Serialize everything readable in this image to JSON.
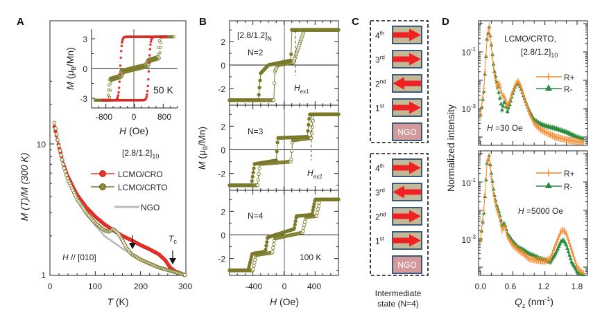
{
  "figure": {
    "panel_labels": [
      "A",
      "B",
      "C",
      "D"
    ]
  },
  "colors": {
    "cro": "#e8332a",
    "crto": "#7b7a2a",
    "ngo": "#b8b8b8",
    "rplus": "#f08a2c",
    "rminus": "#2a8a3e",
    "layer_fill": "#c3b998",
    "layer_border": "#3a5a7a",
    "arrow": "#ee2222",
    "ngo_fill": "#d29a9a"
  },
  "chart_data": [
    {
      "id": "A-main",
      "type": "line",
      "title": "",
      "xlabel": "T (K)",
      "ylabel": "M (T)/M (300 K)",
      "xlim": [
        0,
        300
      ],
      "ylim": [
        1,
        30
      ],
      "yscale": "log",
      "xticks": [
        "0",
        "100",
        "200",
        "300"
      ],
      "yticks": [
        "1",
        "10"
      ],
      "legend_title": "[2.8/1.2]10",
      "annotations": [
        "H // [010]",
        "Tc"
      ],
      "series": [
        {
          "name": "LCMO/CRO",
          "x": [
            10,
            20,
            30,
            40,
            60,
            80,
            100,
            120,
            140,
            160,
            180,
            200,
            220,
            240,
            255,
            265,
            275,
            290,
            300
          ],
          "y": [
            13.5,
            9.5,
            7.0,
            5.6,
            4.1,
            3.3,
            2.8,
            2.45,
            2.2,
            2.0,
            1.85,
            1.7,
            1.58,
            1.45,
            1.3,
            1.15,
            1.08,
            1.03,
            1.0
          ]
        },
        {
          "name": "LCMO/CRTO",
          "x": [
            10,
            20,
            30,
            40,
            60,
            80,
            100,
            120,
            130,
            140,
            150,
            160,
            170,
            180,
            200,
            220,
            240,
            260,
            280,
            300
          ],
          "y": [
            14.5,
            9.5,
            6.8,
            5.3,
            3.8,
            3.0,
            2.5,
            2.2,
            2.15,
            2.25,
            2.1,
            1.85,
            1.6,
            1.45,
            1.32,
            1.23,
            1.15,
            1.1,
            1.05,
            1.0
          ]
        },
        {
          "name": "NGO",
          "x": [
            10,
            40,
            80,
            120,
            160,
            180
          ],
          "y": [
            13,
            5.2,
            2.9,
            2.0,
            1.6,
            1.45
          ]
        }
      ],
      "arrows_at_T": [
        180,
        268
      ]
    },
    {
      "id": "A-inset",
      "type": "line",
      "xlabel": "H (Oe)",
      "ylabel": "M (μB/Mn)",
      "xlim": [
        -1200,
        1200
      ],
      "ylim": [
        -3.8,
        3.8
      ],
      "xticks": [
        "-800",
        "0",
        "800"
      ],
      "yticks": [
        "3",
        "0",
        "-3"
      ],
      "annotation": "50 K",
      "series": [
        {
          "name": "LCMO/CRO",
          "coercive_field": 400,
          "saturation": 3.2
        },
        {
          "name": "LCMO/CRTO",
          "steps": [
            [
              -1050,
              -3.2
            ],
            [
              -700,
              -0.8
            ],
            [
              -350,
              0
            ],
            [
              350,
              0.8
            ],
            [
              700,
              3.2
            ],
            [
              1050,
              3.2
            ]
          ]
        }
      ]
    },
    {
      "id": "B",
      "type": "line",
      "xlabel": "H (Oe)",
      "ylabel": "M (μB/Mn)",
      "xlim": [
        -700,
        700
      ],
      "ylim": [
        -3.4,
        3.4
      ],
      "xticks": [
        "-400",
        "0",
        "400"
      ],
      "yticks": [
        "2",
        "0",
        "-2"
      ],
      "annotations": [
        "[2.8/1.2]N",
        "Hex1",
        "Hex2",
        "100 K"
      ],
      "subplots": [
        {
          "label": "N=2",
          "steps_up": [
            [
              -700,
              -3
            ],
            [
              -330,
              -3
            ],
            [
              -300,
              -0.7
            ],
            [
              -200,
              0
            ],
            [
              90,
              0.4
            ],
            [
              100,
              3
            ],
            [
              700,
              3
            ]
          ],
          "steps_down": [
            [
              -700,
              -3
            ],
            [
              -130,
              -3
            ],
            [
              -120,
              -0.6
            ],
            [
              -80,
              0
            ],
            [
              120,
              0.2
            ],
            [
              200,
              1.8
            ],
            [
              260,
              3
            ],
            [
              700,
              3
            ]
          ],
          "Hex": 145
        },
        {
          "label": "N=3",
          "steps_up": [
            [
              -700,
              -3
            ],
            [
              -420,
              -3
            ],
            [
              -380,
              -1.2
            ],
            [
              -100,
              -0.9
            ],
            [
              -80,
              1
            ],
            [
              300,
              1.1
            ],
            [
              330,
              3
            ],
            [
              700,
              3
            ]
          ],
          "steps_down": [
            [
              -700,
              -3
            ],
            [
              -340,
              -3
            ],
            [
              -310,
              -1.2
            ],
            [
              90,
              -1
            ],
            [
              110,
              0.8
            ],
            [
              350,
              1
            ],
            [
              380,
              3
            ],
            [
              700,
              3
            ]
          ],
          "Hex": 350
        },
        {
          "label": "N=4",
          "steps_up": [
            [
              -700,
              -3
            ],
            [
              -460,
              -3
            ],
            [
              -410,
              -1.6
            ],
            [
              -240,
              -1.4
            ],
            [
              -210,
              -0.2
            ],
            [
              130,
              0.5
            ],
            [
              160,
              1.6
            ],
            [
              360,
              1.7
            ],
            [
              400,
              3
            ],
            [
              700,
              3
            ]
          ],
          "steps_down": [
            [
              -700,
              -3
            ],
            [
              -400,
              -3
            ],
            [
              -360,
              -1.7
            ],
            [
              -150,
              -1.5
            ],
            [
              -120,
              -0.3
            ],
            [
              240,
              0.2
            ],
            [
              280,
              1.5
            ],
            [
              420,
              1.6
            ],
            [
              460,
              3
            ],
            [
              700,
              3
            ]
          ]
        }
      ]
    },
    {
      "id": "D-top",
      "type": "line",
      "xlabel": "Qz (nm-1)",
      "ylabel": "Normalized intensity",
      "yscale": "log",
      "xlim": [
        0,
        1.95
      ],
      "ylim": [
        4e-05,
        1
      ],
      "xticks": [
        "0.0",
        "0.6",
        "1.2",
        "1.8"
      ],
      "yticks": [
        "10-1",
        "10-3"
      ],
      "annotations": [
        "LCMO/CRTO,",
        "[2.8/1.2]10",
        "H =30 Oe"
      ],
      "series": [
        {
          "name": "R+",
          "x": [
            0.0,
            0.06,
            0.12,
            0.16,
            0.2,
            0.25,
            0.3,
            0.35,
            0.4,
            0.45,
            0.5,
            0.55,
            0.6,
            0.65,
            0.7,
            0.75,
            0.8,
            0.9,
            1.0,
            1.1,
            1.2,
            1.4,
            1.6,
            1.8,
            1.95
          ],
          "y": [
            0.0006,
            0.005,
            0.3,
            0.8,
            0.15,
            0.02,
            0.006,
            0.008,
            0.003,
            0.0025,
            0.0012,
            0.002,
            0.004,
            0.007,
            0.009,
            0.006,
            0.003,
            0.0008,
            0.0003,
            0.0002,
            0.00015,
            0.0001,
            8e-05,
            7e-05,
            6e-05
          ]
        },
        {
          "name": "R-",
          "x": [
            0.0,
            0.06,
            0.12,
            0.16,
            0.2,
            0.25,
            0.3,
            0.35,
            0.4,
            0.45,
            0.5,
            0.55,
            0.6,
            0.65,
            0.7,
            0.75,
            0.8,
            0.9,
            1.0,
            1.1,
            1.2,
            1.4,
            1.6,
            1.8,
            1.95
          ],
          "y": [
            0.0006,
            0.004,
            0.28,
            0.75,
            0.18,
            0.025,
            0.009,
            0.003,
            0.0009,
            0.002,
            0.0008,
            0.0016,
            0.0035,
            0.0065,
            0.0085,
            0.0055,
            0.0028,
            0.0009,
            0.0004,
            0.0003,
            0.00025,
            0.0002,
            0.00015,
            0.0001,
            8e-05
          ]
        }
      ]
    },
    {
      "id": "D-bottom",
      "type": "line",
      "xlabel": "Qz (nm-1)",
      "ylabel": "Normalized intensity",
      "yscale": "log",
      "xlim": [
        0,
        1.95
      ],
      "ylim": [
        4e-05,
        1
      ],
      "xticks": [
        "0.0",
        "0.6",
        "1.2",
        "1.8"
      ],
      "yticks": [
        "10-1",
        "10-3"
      ],
      "annotations": [
        "H =5000 Oe"
      ],
      "series": [
        {
          "name": "R+",
          "x": [
            0.0,
            0.06,
            0.12,
            0.16,
            0.2,
            0.25,
            0.3,
            0.35,
            0.4,
            0.45,
            0.5,
            0.6,
            0.7,
            0.8,
            0.9,
            1.0,
            1.1,
            1.2,
            1.3,
            1.4,
            1.5,
            1.55,
            1.6,
            1.7,
            1.8,
            1.9
          ],
          "y": [
            0.0009,
            0.01,
            0.5,
            0.8,
            0.15,
            0.03,
            0.012,
            0.006,
            0.002,
            0.003,
            0.0012,
            0.0006,
            0.0004,
            0.0003,
            0.0002,
            0.00018,
            0.00017,
            0.00016,
            0.0002,
            0.0006,
            0.0018,
            0.002,
            0.0015,
            0.0004,
            0.0001,
            6e-05
          ]
        },
        {
          "name": "R-",
          "x": [
            0.0,
            0.06,
            0.12,
            0.16,
            0.2,
            0.25,
            0.3,
            0.35,
            0.4,
            0.45,
            0.5,
            0.6,
            0.7,
            0.8,
            0.9,
            1.0,
            1.1,
            1.2,
            1.3,
            1.4,
            1.5,
            1.55,
            1.6,
            1.7,
            1.8,
            1.9
          ],
          "y": [
            0.0009,
            0.008,
            0.45,
            0.85,
            0.2,
            0.04,
            0.015,
            0.008,
            0.003,
            0.0035,
            0.0015,
            0.0008,
            0.0005,
            0.0004,
            0.0003,
            0.00025,
            0.0002,
            0.00018,
            0.00015,
            0.0003,
            0.0008,
            0.0009,
            0.0006,
            0.00015,
            7e-05,
            5e-05
          ]
        }
      ]
    }
  ],
  "panelA": {
    "ylabel": "M (T)/M (300 K)",
    "xlabel_var": "T",
    "xlabel_unit": " (K)",
    "xticks": [
      "0",
      "100",
      "200",
      "300"
    ],
    "yticks": [
      "1",
      "10"
    ],
    "legend_title": "[2.8/1.2]",
    "legend_title_sub": "10",
    "legend": [
      "LCMO/CRO",
      "LCMO/CRTO",
      "NGO"
    ],
    "field_dir_var": "H",
    "field_dir_text": " // [010]",
    "tc_var": "T",
    "tc_sub": "c",
    "inset": {
      "ylabel_M": "M",
      "ylabel_rest": " (μ",
      "ylabel_sub": "B",
      "ylabel_end": "/Mn)",
      "xlabel_var": "H",
      "xlabel_unit": " (Oe)",
      "xticks": [
        "-800",
        "0",
        "800"
      ],
      "yticks": [
        "3",
        "0",
        "-3"
      ],
      "temp": "50 K"
    }
  },
  "panelB": {
    "ylabel_M": "M",
    "ylabel_rest": " (μ",
    "ylabel_sub": "B",
    "ylabel_end": "/Mn)",
    "xlabel_var": "H",
    "xlabel_unit": " (Oe)",
    "xticks": [
      "-400",
      "0",
      "400"
    ],
    "yticks": [
      "2",
      "0",
      "-2"
    ],
    "series_label": "[2.8/1.2]",
    "series_sub": "N",
    "n_labels": [
      "N=2",
      "N=3",
      "N=4"
    ],
    "hex1_var": "H",
    "hex1_sub": "ex1",
    "hex2_var": "H",
    "hex2_sub": "ex2",
    "temp": "100 K"
  },
  "panelC": {
    "stacks": [
      {
        "layers": [
          {
            "ord": "4",
            "sup": "th",
            "dir": "right"
          },
          {
            "ord": "3",
            "sup": "rd",
            "dir": "right"
          },
          {
            "ord": "2",
            "sup": "nd",
            "dir": "left"
          },
          {
            "ord": "1",
            "sup": "st",
            "dir": "right"
          }
        ],
        "substrate": "NGO"
      },
      {
        "layers": [
          {
            "ord": "4",
            "sup": "th",
            "dir": "right"
          },
          {
            "ord": "3",
            "sup": "rd",
            "dir": "left"
          },
          {
            "ord": "2",
            "sup": "nd",
            "dir": "right"
          },
          {
            "ord": "1",
            "sup": "st",
            "dir": "right"
          }
        ],
        "substrate": "NGO"
      }
    ],
    "caption_line1": "Intermediate",
    "caption_line2": "state (N=4)"
  },
  "panelD": {
    "ylabel": "Normalized intensity",
    "xlabel_var": "Q",
    "xlabel_sub": "z",
    "xlabel_unit": " (nm",
    "xlabel_sup": "-1",
    "xlabel_end": ")",
    "xticks": [
      "0.0",
      "0.6",
      "1.2",
      "1.8"
    ],
    "yticks_base": "10",
    "yticks_exp": [
      "-1",
      "-3"
    ],
    "sample": "LCMO/CRTO,",
    "sample2": "[2.8/1.2]",
    "sample2_sub": "10",
    "legend": [
      "R+",
      "R-"
    ],
    "field_top_var": "H",
    "field_top": " =30 Oe",
    "field_bottom_var": "H",
    "field_bottom": " =5000 Oe"
  }
}
